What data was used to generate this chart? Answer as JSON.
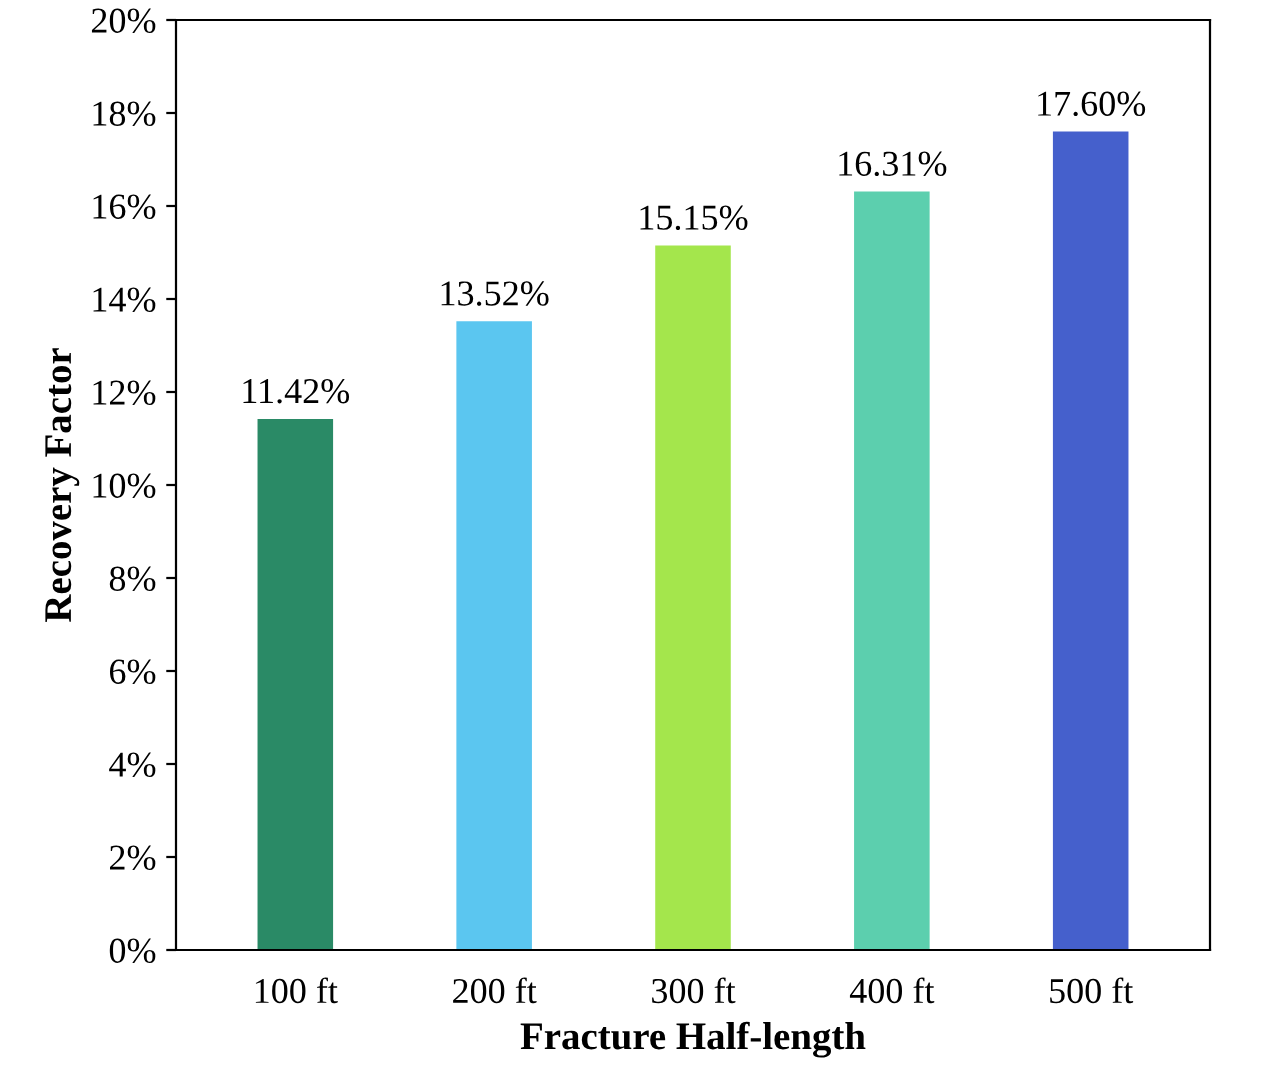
{
  "chart_data": {
    "type": "bar",
    "categories": [
      "100 ft",
      "200 ft",
      "300 ft",
      "400 ft",
      "500 ft"
    ],
    "values": [
      11.42,
      13.52,
      15.15,
      16.31,
      17.6
    ],
    "colors": [
      "#2a8a66",
      "#5bc6f0",
      "#a4e64c",
      "#5ccfae",
      "#4560cc"
    ],
    "value_labels": [
      "11.42%",
      "13.52%",
      "15.15%",
      "16.31%",
      "17.60%"
    ],
    "xlabel": "Fracture Half-length",
    "ylabel": "Recovery Factor",
    "ylim": [
      0,
      20
    ],
    "yticks": [
      {
        "value": 0,
        "label": "0%"
      },
      {
        "value": 2,
        "label": "2%"
      },
      {
        "value": 4,
        "label": "4%"
      },
      {
        "value": 6,
        "label": "6%"
      },
      {
        "value": 8,
        "label": "8%"
      },
      {
        "value": 10,
        "label": "10%"
      },
      {
        "value": 12,
        "label": "12%"
      },
      {
        "value": 14,
        "label": "14%"
      },
      {
        "value": 16,
        "label": "16%"
      },
      {
        "value": 18,
        "label": "18%"
      },
      {
        "value": 20,
        "label": "20%"
      }
    ],
    "grid": false,
    "legend": false
  }
}
